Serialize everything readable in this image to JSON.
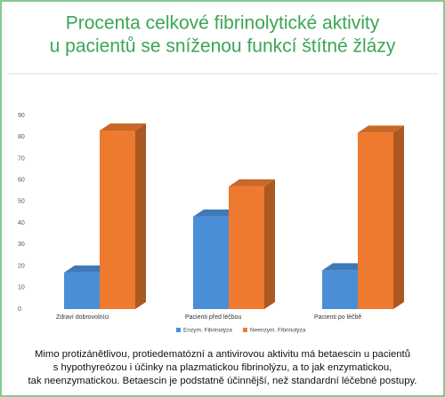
{
  "chart_data": {
    "type": "bar3d",
    "title": [
      "Procenta celkové fibrinolytické aktivity",
      "u pacientů se sníženou funkcí štítné žlázy"
    ],
    "categories": [
      "Zdraví dobrovolníci",
      "Pacienti před léčbou",
      "Pacienti po léčbě"
    ],
    "series": [
      {
        "name": "Enzym. Fibrinolýza",
        "color": "#4a8ed6",
        "values": [
          17,
          43,
          18
        ]
      },
      {
        "name": "Neenzym. Fibrinolýza",
        "color": "#ee7a2f",
        "values": [
          83,
          57,
          82
        ]
      }
    ],
    "ylim": [
      0,
      90
    ],
    "yticks": [
      0,
      10,
      20,
      30,
      40,
      50,
      60,
      70,
      80,
      90
    ],
    "grid": false,
    "caption": [
      "Mimo protizánětlivou, protiedematózní a antivirovou aktivitu má betaescin u pacientů",
      "s hypothyreózou i účinky na plazmatickou fibrinolýzu, a to jak enzymatickou,",
      "tak neenzymatickou. Betaescin je podstatně účinnější, než standardní  léčebné postupy."
    ]
  }
}
